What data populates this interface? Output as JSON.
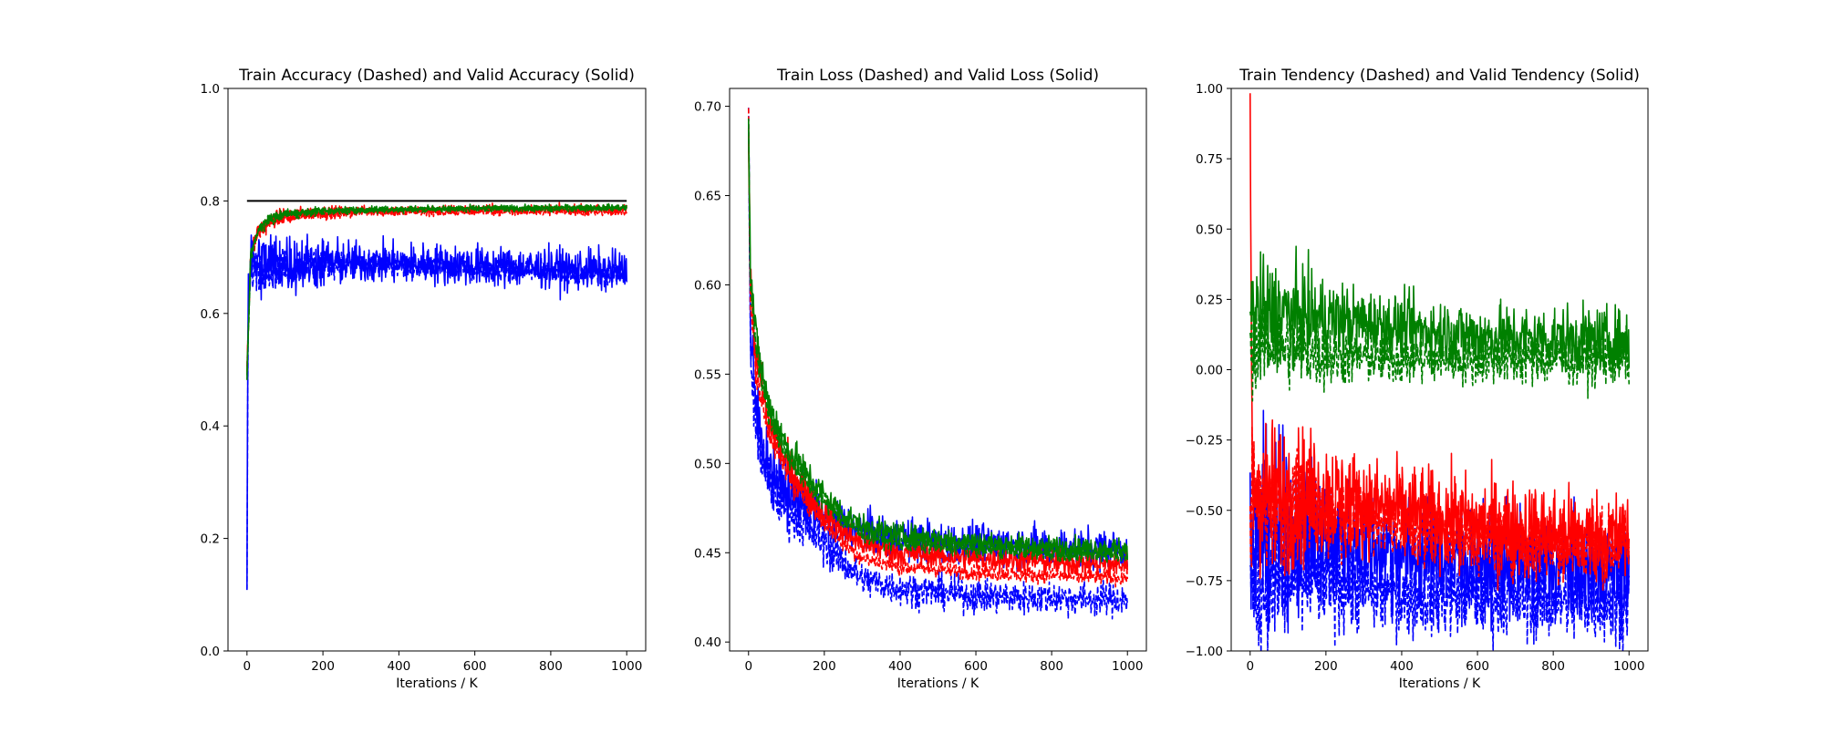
{
  "chart_data": [
    {
      "type": "line",
      "title": "Train Accuracy (Dashed) and Valid Accuracy (Solid)",
      "xlabel": "Iterations / K",
      "ylabel": "",
      "xlim": [
        -50,
        1050
      ],
      "ylim": [
        0.0,
        1.0
      ],
      "xticks": [
        0,
        200,
        400,
        600,
        800,
        1000
      ],
      "yticks": [
        0.0,
        0.2,
        0.4,
        0.6,
        0.8,
        1.0
      ],
      "ytick_labels": [
        "0.0",
        "0.2",
        "0.4",
        "0.6",
        "0.8",
        "1.0"
      ],
      "grid": false,
      "reference_line": {
        "y": 0.8,
        "x": [
          0,
          1000
        ],
        "color": "#000000"
      },
      "series": [
        {
          "color": "#ff0000",
          "style": "dashed",
          "points": [
            [
              0,
              0.5
            ],
            [
              10,
              0.7
            ],
            [
              30,
              0.74
            ],
            [
              60,
              0.76
            ],
            [
              100,
              0.77
            ],
            [
              150,
              0.775
            ],
            [
              200,
              0.775
            ],
            [
              300,
              0.78
            ],
            [
              400,
              0.78
            ],
            [
              500,
              0.78
            ],
            [
              600,
              0.78
            ],
            [
              700,
              0.78
            ],
            [
              800,
              0.78
            ],
            [
              900,
              0.78
            ],
            [
              1000,
              0.78
            ]
          ],
          "noise": 0.006,
          "clip": [
            0,
            1
          ]
        },
        {
          "color": "#ff0000",
          "style": "solid",
          "points": [
            [
              0,
              0.5
            ],
            [
              10,
              0.71
            ],
            [
              30,
              0.75
            ],
            [
              60,
              0.765
            ],
            [
              100,
              0.775
            ],
            [
              200,
              0.78
            ],
            [
              300,
              0.783
            ],
            [
              400,
              0.783
            ],
            [
              600,
              0.785
            ],
            [
              800,
              0.785
            ],
            [
              1000,
              0.785
            ]
          ],
          "noise": 0.008,
          "clip": [
            0,
            1
          ]
        },
        {
          "color": "#0000ff",
          "style": "dashed",
          "points": [
            [
              0,
              0.14
            ],
            [
              3,
              0.6
            ],
            [
              10,
              0.68
            ],
            [
              50,
              0.68
            ],
            [
              200,
              0.69
            ],
            [
              400,
              0.685
            ],
            [
              600,
              0.68
            ],
            [
              800,
              0.675
            ],
            [
              1000,
              0.67
            ]
          ],
          "noise": 0.02,
          "clip": [
            0,
            1
          ]
        },
        {
          "color": "#0000ff",
          "style": "solid",
          "points": [
            [
              0,
              0.14
            ],
            [
              3,
              0.64
            ],
            [
              10,
              0.69
            ],
            [
              100,
              0.69
            ],
            [
              250,
              0.69
            ],
            [
              400,
              0.69
            ],
            [
              600,
              0.685
            ],
            [
              800,
              0.68
            ],
            [
              1000,
              0.675
            ]
          ],
          "noise": 0.035,
          "clip": [
            0,
            1
          ]
        },
        {
          "color": "#008000",
          "style": "dashed",
          "points": [
            [
              0,
              0.49
            ],
            [
              10,
              0.7
            ],
            [
              30,
              0.745
            ],
            [
              60,
              0.765
            ],
            [
              100,
              0.775
            ],
            [
              200,
              0.78
            ],
            [
              300,
              0.783
            ],
            [
              500,
              0.785
            ],
            [
              700,
              0.785
            ],
            [
              1000,
              0.787
            ]
          ],
          "noise": 0.005,
          "clip": [
            0,
            1
          ]
        },
        {
          "color": "#008000",
          "style": "solid",
          "points": [
            [
              0,
              0.49
            ],
            [
              10,
              0.71
            ],
            [
              30,
              0.75
            ],
            [
              60,
              0.77
            ],
            [
              100,
              0.778
            ],
            [
              200,
              0.783
            ],
            [
              400,
              0.786
            ],
            [
              600,
              0.787
            ],
            [
              800,
              0.788
            ],
            [
              1000,
              0.789
            ]
          ],
          "noise": 0.005,
          "clip": [
            0,
            1
          ]
        }
      ]
    },
    {
      "type": "line",
      "title": "Train Loss (Dashed) and Valid Loss (Solid)",
      "xlabel": "Iterations / K",
      "ylabel": "",
      "xlim": [
        -50,
        1050
      ],
      "ylim": [
        0.395,
        0.71
      ],
      "xticks": [
        0,
        200,
        400,
        600,
        800,
        1000
      ],
      "yticks": [
        0.4,
        0.45,
        0.5,
        0.55,
        0.6,
        0.65,
        0.7
      ],
      "ytick_labels": [
        "0.40",
        "0.45",
        "0.50",
        "0.55",
        "0.60",
        "0.65",
        "0.70"
      ],
      "grid": false,
      "series": [
        {
          "color": "#0000ff",
          "style": "dashed",
          "points": [
            [
              0,
              0.69
            ],
            [
              5,
              0.56
            ],
            [
              20,
              0.52
            ],
            [
              50,
              0.49
            ],
            [
              100,
              0.475
            ],
            [
              150,
              0.465
            ],
            [
              200,
              0.455
            ],
            [
              250,
              0.445
            ],
            [
              300,
              0.435
            ],
            [
              400,
              0.43
            ],
            [
              500,
              0.428
            ],
            [
              600,
              0.426
            ],
            [
              700,
              0.425
            ],
            [
              800,
              0.425
            ],
            [
              900,
              0.424
            ],
            [
              1000,
              0.424
            ]
          ],
          "noise": 0.009,
          "clip": [
            0.395,
            0.71
          ]
        },
        {
          "color": "#0000ff",
          "style": "solid",
          "points": [
            [
              0,
              0.69
            ],
            [
              5,
              0.57
            ],
            [
              20,
              0.53
            ],
            [
              50,
              0.5
            ],
            [
              100,
              0.485
            ],
            [
              150,
              0.478
            ],
            [
              200,
              0.47
            ],
            [
              300,
              0.462
            ],
            [
              400,
              0.458
            ],
            [
              500,
              0.456
            ],
            [
              600,
              0.455
            ],
            [
              800,
              0.453
            ],
            [
              1000,
              0.452
            ]
          ],
          "noise": 0.011,
          "clip": [
            0.395,
            0.71
          ]
        },
        {
          "color": "#ff0000",
          "style": "dashed",
          "points": [
            [
              0,
              0.69
            ],
            [
              5,
              0.59
            ],
            [
              20,
              0.55
            ],
            [
              50,
              0.52
            ],
            [
              100,
              0.495
            ],
            [
              150,
              0.48
            ],
            [
              200,
              0.468
            ],
            [
              250,
              0.455
            ],
            [
              300,
              0.447
            ],
            [
              400,
              0.442
            ],
            [
              600,
              0.439
            ],
            [
              800,
              0.437
            ],
            [
              1000,
              0.436
            ]
          ],
          "noise": 0.004,
          "clip": [
            0.395,
            0.71
          ]
        },
        {
          "color": "#ff0000",
          "style": "solid",
          "points": [
            [
              0,
              0.69
            ],
            [
              5,
              0.6
            ],
            [
              20,
              0.56
            ],
            [
              50,
              0.525
            ],
            [
              100,
              0.5
            ],
            [
              150,
              0.485
            ],
            [
              200,
              0.472
            ],
            [
              250,
              0.462
            ],
            [
              300,
              0.455
            ],
            [
              400,
              0.45
            ],
            [
              600,
              0.447
            ],
            [
              800,
              0.445
            ],
            [
              1000,
              0.443
            ]
          ],
          "noise": 0.007,
          "clip": [
            0.395,
            0.71
          ]
        },
        {
          "color": "#008000",
          "style": "dashed",
          "points": [
            [
              0,
              0.695
            ],
            [
              5,
              0.6
            ],
            [
              20,
              0.565
            ],
            [
              50,
              0.53
            ],
            [
              100,
              0.505
            ],
            [
              150,
              0.49
            ],
            [
              200,
              0.478
            ],
            [
              250,
              0.468
            ],
            [
              300,
              0.46
            ],
            [
              400,
              0.455
            ],
            [
              600,
              0.452
            ],
            [
              800,
              0.45
            ],
            [
              1000,
              0.449
            ]
          ],
          "noise": 0.004,
          "clip": [
            0.395,
            0.71
          ]
        },
        {
          "color": "#008000",
          "style": "solid",
          "points": [
            [
              0,
              0.696
            ],
            [
              5,
              0.61
            ],
            [
              20,
              0.57
            ],
            [
              50,
              0.535
            ],
            [
              100,
              0.51
            ],
            [
              150,
              0.495
            ],
            [
              200,
              0.482
            ],
            [
              250,
              0.472
            ],
            [
              300,
              0.465
            ],
            [
              400,
              0.46
            ],
            [
              600,
              0.456
            ],
            [
              800,
              0.453
            ],
            [
              1000,
              0.452
            ]
          ],
          "noise": 0.006,
          "clip": [
            0.395,
            0.71
          ]
        }
      ]
    },
    {
      "type": "line",
      "title": "Train Tendency (Dashed) and Valid Tendency (Solid)",
      "xlabel": "Iterations / K",
      "ylabel": "",
      "xlim": [
        -50,
        1050
      ],
      "ylim": [
        -1.0,
        1.0
      ],
      "xticks": [
        0,
        200,
        400,
        600,
        800,
        1000
      ],
      "yticks": [
        -1.0,
        -0.75,
        -0.5,
        -0.25,
        0.0,
        0.25,
        0.5,
        0.75,
        1.0
      ],
      "ytick_labels": [
        "−1.00",
        "−0.75",
        "−0.50",
        "−0.25",
        "0.00",
        "0.25",
        "0.50",
        "0.75",
        "1.00"
      ],
      "grid": false,
      "series": [
        {
          "color": "#0000ff",
          "style": "dashed",
          "points": [
            [
              0,
              -0.8
            ],
            [
              100,
              -0.75
            ],
            [
              200,
              -0.75
            ],
            [
              300,
              -0.78
            ],
            [
              400,
              -0.8
            ],
            [
              600,
              -0.8
            ],
            [
              800,
              -0.82
            ],
            [
              1000,
              -0.82
            ]
          ],
          "noise": 0.14,
          "clip": [
            -1,
            1
          ]
        },
        {
          "color": "#0000ff",
          "style": "solid",
          "points": [
            [
              0,
              -0.6
            ],
            [
              100,
              -0.55
            ],
            [
              200,
              -0.6
            ],
            [
              300,
              -0.62
            ],
            [
              400,
              -0.65
            ],
            [
              600,
              -0.68
            ],
            [
              800,
              -0.7
            ],
            [
              1000,
              -0.72
            ]
          ],
          "noise": 0.18,
          "clip": [
            -1,
            1
          ]
        },
        {
          "color": "#ff0000",
          "style": "dashed",
          "points": [
            [
              0,
              -0.45
            ],
            [
              50,
              -0.5
            ],
            [
              200,
              -0.5
            ],
            [
              400,
              -0.55
            ],
            [
              600,
              -0.6
            ],
            [
              800,
              -0.62
            ],
            [
              1000,
              -0.63
            ]
          ],
          "noise": 0.12,
          "clip": [
            -1,
            1
          ]
        },
        {
          "color": "#ff0000",
          "style": "solid",
          "points": [
            [
              0,
              0.95
            ],
            [
              5,
              -0.4
            ],
            [
              50,
              -0.45
            ],
            [
              200,
              -0.45
            ],
            [
              400,
              -0.5
            ],
            [
              600,
              -0.55
            ],
            [
              800,
              -0.58
            ],
            [
              1000,
              -0.6
            ]
          ],
          "noise": 0.16,
          "clip": [
            -1,
            1
          ]
        },
        {
          "color": "#008000",
          "style": "dashed",
          "points": [
            [
              0,
              0.1
            ],
            [
              100,
              0.08
            ],
            [
              200,
              0.05
            ],
            [
              400,
              0.04
            ],
            [
              600,
              0.04
            ],
            [
              800,
              0.04
            ],
            [
              1000,
              0.04
            ]
          ],
          "noise": 0.09,
          "clip": [
            -1,
            1
          ]
        },
        {
          "color": "#008000",
          "style": "solid",
          "points": [
            [
              0,
              0.2
            ],
            [
              100,
              0.2
            ],
            [
              200,
              0.18
            ],
            [
              300,
              0.17
            ],
            [
              400,
              0.15
            ],
            [
              600,
              0.12
            ],
            [
              800,
              0.11
            ],
            [
              1000,
              0.1
            ]
          ],
          "noise": 0.11,
          "clip": [
            -1,
            1
          ]
        }
      ]
    }
  ]
}
